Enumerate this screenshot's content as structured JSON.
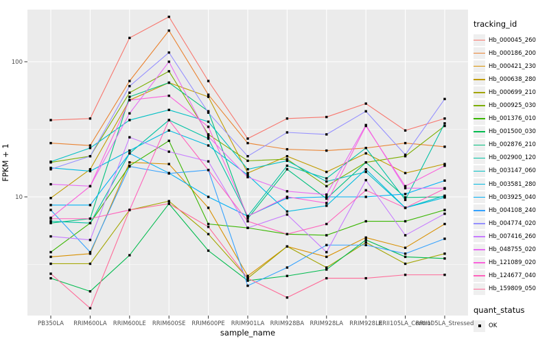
{
  "figure": {
    "panel_background": "#EBEBEB",
    "grid_color": "#FFFFFF",
    "tick_color": "#333333",
    "axis_text_color": "#4D4D4D",
    "title_color": "#000000",
    "point_color": "#000000",
    "legend_key_background": "#EFEFEF"
  },
  "axes": {
    "x_title": "sample_name",
    "y_title": "FPKM + 1",
    "y_tick_labels": [
      "100",
      "10"
    ],
    "y_tick_values": [
      100,
      10
    ],
    "y_minor_values": [
      31.62,
      3.162
    ],
    "y_scale": "log10"
  },
  "legend": {
    "tracking_title": "tracking_id",
    "quant_title": "quant_status",
    "quant_label": "OK",
    "quant_marker": "black-square"
  },
  "chart_data": {
    "type": "line",
    "xlabel": "sample_name",
    "ylabel": "FPKM + 1",
    "y_scale": "log10",
    "ylim": [
      1.3,
      243
    ],
    "grid": true,
    "legend_position": "right",
    "point_shape": "filled-square",
    "point_status_label": "OK",
    "categories": [
      "PB350LA",
      "RRIM600LA",
      "RRIM600LE",
      "RRIM600SE",
      "RRIM600PE",
      "RRIM901LA",
      "RRIM928BA",
      "RRIM928LA",
      "RRIM928LE",
      "RRII105LA_Control",
      "RRII105LA_Stressed"
    ],
    "series": [
      {
        "name": "Hb_000045_260",
        "color": "#F8766D",
        "values": [
          37,
          38,
          150,
          215,
          72,
          27,
          38,
          39,
          49,
          31,
          38
        ]
      },
      {
        "name": "Hb_000186_200",
        "color": "#EA8331",
        "values": [
          25,
          24,
          72,
          170,
          57,
          25,
          22.5,
          22,
          23,
          25,
          23.5
        ]
      },
      {
        "name": "Hb_000421_230",
        "color": "#D89000",
        "values": [
          3.6,
          3.8,
          18,
          17.5,
          8.3,
          2.6,
          4.3,
          3.6,
          5,
          4.2,
          6.3
        ]
      },
      {
        "name": "Hb_000638_280",
        "color": "#C09B00",
        "values": [
          9.8,
          16,
          52,
          70,
          55,
          15,
          20,
          15.3,
          21,
          15,
          17.5
        ]
      },
      {
        "name": "Hb_000699_210",
        "color": "#A3A500",
        "values": [
          3.2,
          3.2,
          8,
          9.3,
          5.3,
          2.5,
          4.3,
          3,
          4.6,
          3.2,
          3.8
        ]
      },
      {
        "name": "Hb_000925_030",
        "color": "#7CAE00",
        "values": [
          18,
          20,
          59,
          85,
          29,
          18.5,
          19,
          12,
          18,
          20,
          33.5
        ]
      },
      {
        "name": "Hb_001376_010",
        "color": "#39B600",
        "values": [
          3.9,
          6.4,
          17,
          26,
          6.3,
          5.9,
          5.3,
          5.2,
          6.6,
          6.6,
          8
        ]
      },
      {
        "name": "Hb_001500_030",
        "color": "#00BB4E",
        "values": [
          2.5,
          2,
          3.7,
          8.9,
          4,
          2.4,
          2.6,
          2.9,
          4.8,
          3.6,
          3.5
        ]
      },
      {
        "name": "Hb_002876_210",
        "color": "#00BF7D",
        "values": [
          6.4,
          6.9,
          55,
          70,
          43,
          6.9,
          16,
          9.7,
          18,
          9.9,
          10
        ]
      },
      {
        "name": "Hb_002900_120",
        "color": "#00C1A3",
        "values": [
          6.6,
          6.4,
          21,
          37,
          27,
          7.2,
          17,
          13.7,
          23,
          9.5,
          35
        ]
      },
      {
        "name": "Hb_003147_060",
        "color": "#00BFC4",
        "values": [
          18.2,
          23,
          37,
          44,
          36,
          16,
          18.5,
          13,
          15.3,
          8.3,
          10.2
        ]
      },
      {
        "name": "Hb_003581_280",
        "color": "#00BAE0",
        "values": [
          16.4,
          15.5,
          22,
          31,
          24,
          14.5,
          7.8,
          8.6,
          16,
          8.3,
          9.9
        ]
      },
      {
        "name": "Hb_003925_040",
        "color": "#00B0F6",
        "values": [
          8.7,
          8.7,
          21,
          15,
          10,
          7.2,
          9.8,
          10,
          10,
          10.5,
          13.2
        ]
      },
      {
        "name": "Hb_004108_240",
        "color": "#35A2FF",
        "values": [
          8,
          3.9,
          16.8,
          14.9,
          15.8,
          2.2,
          3,
          4.4,
          4.4,
          3.8,
          4.9
        ]
      },
      {
        "name": "Hb_004774_020",
        "color": "#9590FF",
        "values": [
          16,
          20,
          66,
          117,
          42,
          20,
          30,
          29,
          43,
          20.5,
          53
        ]
      },
      {
        "name": "Hb_007416_260",
        "color": "#C77CFF",
        "values": [
          5.1,
          4.8,
          27.6,
          21.6,
          18.3,
          5.9,
          7.4,
          3.9,
          13.3,
          5.2,
          7.5
        ]
      },
      {
        "name": "Hb_048755_020",
        "color": "#E76BF3",
        "values": [
          12.4,
          12,
          41.5,
          100,
          28,
          14,
          11,
          10.4,
          34,
          11.6,
          11.6
        ]
      },
      {
        "name": "Hb_121089_020",
        "color": "#FA62DB",
        "values": [
          7,
          12,
          52,
          56,
          33,
          7.2,
          10,
          9,
          33.5,
          12,
          17
        ]
      },
      {
        "name": "Hb_124677_040",
        "color": "#FF62BC",
        "values": [
          6.9,
          6.9,
          8,
          37,
          15.8,
          6.6,
          5.3,
          6.3,
          11.2,
          8.3,
          11.5
        ]
      },
      {
        "name": "Hb_159809_050",
        "color": "#FF6A98",
        "values": [
          2.7,
          1.5,
          8,
          8.9,
          6,
          2.5,
          1.8,
          2.5,
          2.5,
          2.65,
          2.65
        ]
      }
    ]
  }
}
